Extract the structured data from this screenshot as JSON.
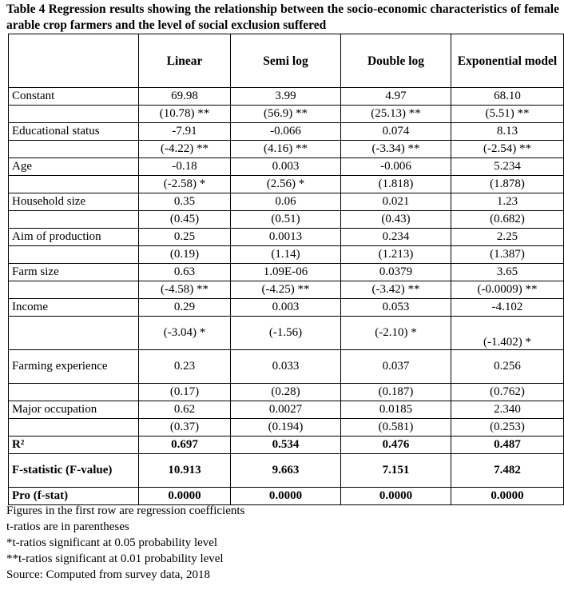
{
  "caption": "Table 4 Regression results showing the relationship between the socio-economic characteristics of female arable crop farmers and the level of social exclusion suffered",
  "columns": [
    "",
    "Linear",
    "Semi log",
    "Double log",
    "Exponential model"
  ],
  "rows": [
    {
      "label": "Constant",
      "values": [
        "69.98",
        "3.99",
        "4.97",
        "68.10"
      ]
    },
    {
      "label": "",
      "values": [
        "(10.78) **",
        "(56.9) **",
        "(25.13) **",
        "(5.51) **"
      ]
    },
    {
      "label": "Educational status",
      "values": [
        "-7.91",
        "-0.066",
        "0.074",
        "8.13"
      ]
    },
    {
      "label": "",
      "values": [
        "(-4.22) **",
        "(4.16) **",
        "(-3.34) **",
        "(-2.54) **"
      ]
    },
    {
      "label": "Age",
      "values": [
        "-0.18",
        "0.003",
        "-0.006",
        "5.234"
      ]
    },
    {
      "label": "",
      "values": [
        "(-2.58) *",
        "(2.56) *",
        "(1.818)",
        "(1.878)"
      ]
    },
    {
      "label": "Household size",
      "values": [
        "0.35",
        "0.06",
        "0.021",
        "1.23"
      ]
    },
    {
      "label": "",
      "values": [
        "(0.45)",
        "(0.51)",
        "(0.43)",
        "(0.682)"
      ]
    },
    {
      "label": "Aim of production",
      "values": [
        "0.25",
        "0.0013",
        "0.234",
        "2.25"
      ]
    },
    {
      "label": "",
      "values": [
        "(0.19)",
        "(1.14)",
        "(1.213)",
        "(1.387)"
      ]
    },
    {
      "label": "Farm size",
      "values": [
        "0.63",
        "1.09E-06",
        "0.0379",
        "3.65"
      ]
    },
    {
      "label": "",
      "values": [
        "(-4.58) **",
        "(-4.25) **",
        "(-3.42) **",
        "(-0.0009) **"
      ]
    },
    {
      "label": "Income",
      "values": [
        "0.29",
        "0.003",
        "0.053",
        "-4.102"
      ]
    },
    {
      "label": "",
      "values": [
        "(-3.04) *",
        "(-1.56)",
        "(-2.10) *",
        "(-1.402) *"
      ],
      "tall": true
    },
    {
      "label": "Farming experience",
      "values": [
        "0.23",
        "0.033",
        "0.037",
        "0.256"
      ],
      "tall": true
    },
    {
      "label": "",
      "values": [
        "(0.17)",
        "(0.28)",
        "(0.187)",
        "(0.762)"
      ]
    },
    {
      "label": "Major occupation",
      "values": [
        "0.62",
        "0.0027",
        "0.0185",
        "2.340"
      ]
    },
    {
      "label": "",
      "values": [
        "(0.37)",
        "(0.194)",
        "(0.581)",
        "(0.253)"
      ]
    },
    {
      "label": "R²",
      "values": [
        "0.697",
        "0.534",
        "0.476",
        "0.487"
      ],
      "bold": true
    },
    {
      "label": "F-statistic (F-value)",
      "values": [
        "10.913",
        "9.663",
        "7.151",
        "7.482"
      ],
      "bold": true,
      "tall": true
    },
    {
      "label": "Pro (f-stat)",
      "values": [
        "0.0000",
        "0.0000",
        "0.0000",
        "0.0000"
      ],
      "bold": true
    }
  ],
  "notes": [
    "Figures in the first row are regression coefficients",
    "t-ratios are in parentheses",
    "*t-ratios significant at 0.05 probability level",
    "**t-ratios significant at 0.01 probability level",
    "Source: Computed from survey data, 2018"
  ]
}
